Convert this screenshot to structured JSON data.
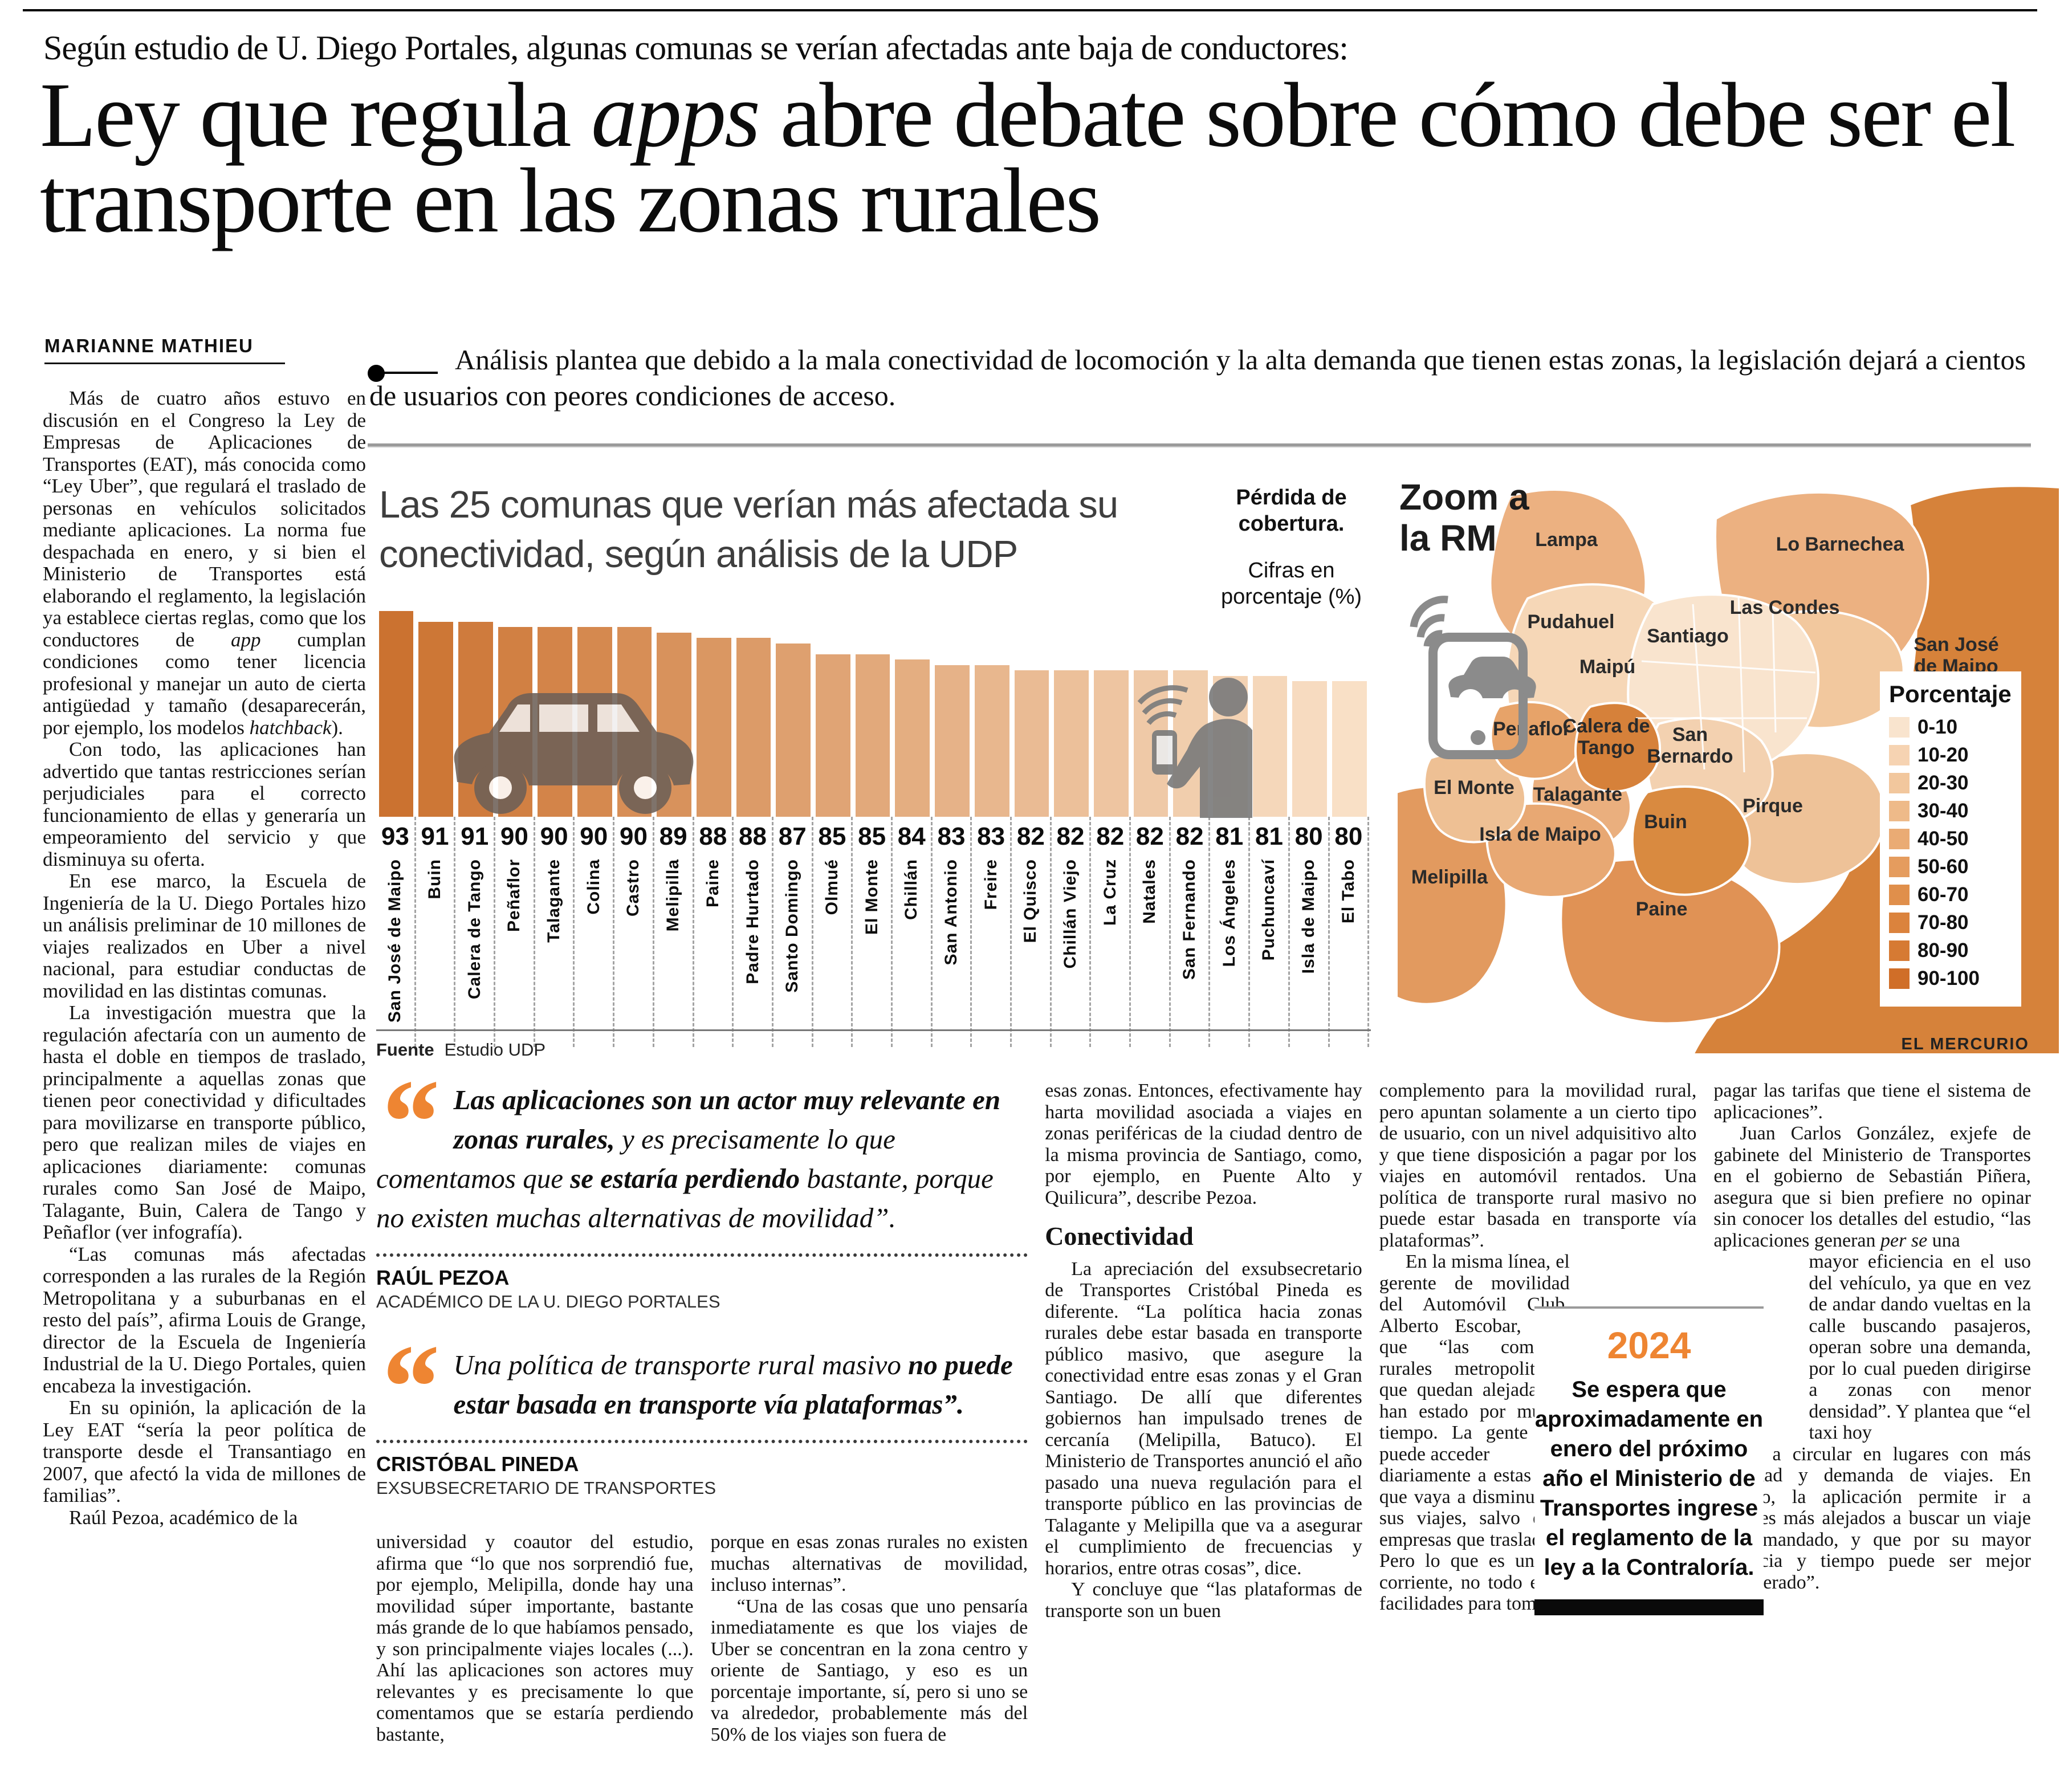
{
  "masthead": {
    "kicker": "Según estudio de U. Diego Portales, algunas comunas se verían afectadas ante baja de conductores:",
    "headline_pre": "Ley que regula ",
    "headline_italic": "apps",
    "headline_post": " abre debate sobre cómo debe ser el transporte en las zonas rurales",
    "byline": "MARIANNE MATHIEU",
    "lede": "Análisis plantea que debido a la mala conectividad de locomoción y la alta demanda que tienen estas zonas, la legislación dejará a cientos de usuarios con peores condiciones de acceso."
  },
  "left_column": {
    "paragraphs": [
      {
        "t": "Más de cuatro años estuvo en discusión en el Congreso la Ley de Empresas de Aplicaciones de Transportes (EAT), más conocida como “Ley Uber”, que regulará el traslado de personas en vehículos solicitados mediante aplicaciones. La norma fue despachada en enero, y si bien el Ministerio de Transportes está elaborando el reglamento, la legislación ya establece ciertas reglas, como que los conductores de *app* cumplan condiciones como tener licencia profesional y manejar un auto de cierta antigüedad y tamaño (desaparecerán, por ejemplo, los modelos *hatchback*)."
      },
      {
        "t": "Con todo, las aplicaciones han advertido que tantas restricciones serían perjudiciales para el correcto funcionamiento de ellas y generaría un empeoramiento del servicio y que disminuya su oferta."
      },
      {
        "t": "En ese marco, la Escuela de Ingeniería de la U. Diego Portales hizo un análisis preliminar de 10 millones de viajes realizados en Uber a nivel nacional, para estudiar conductas de movilidad en las distintas comunas."
      },
      {
        "t": "La investigación muestra que la regulación afectaría con un aumento de hasta el doble en tiempos de traslado, principalmente a aquellas zonas que tienen peor conectividad y dificultades para movilizarse en transporte público, pero que realizan miles de viajes en aplicaciones diariamente: comunas rurales como San José de Maipo, Talagante, Buin, Calera de Tango y Peñaflor (ver infografía)."
      },
      {
        "t": "“Las comunas más afectadas corresponden a las rurales de la Región Metropolitana y a suburbanas en el resto del país”, afirma Louis de Grange, director de la Escuela de Ingeniería Industrial de la U. Diego Portales, quien encabeza la investigación."
      },
      {
        "t": "En su opinión, la aplicación de la Ley EAT “sería la peor política de transporte desde el Transantiago en 2007, que afectó la vida de millones de familias”."
      },
      {
        "t": "Raúl Pezoa, académico de la"
      }
    ]
  },
  "chart_data": {
    "type": "bar",
    "title": "Las 25 comunas que verían más afectada su conectividad, según análisis de la UDP",
    "note_bold": "Pérdida de cobertura.",
    "note": "Cifras en porcentaje (%)",
    "categories": [
      "San José de Maipo",
      "Buin",
      "Calera de Tango",
      "Peñaflor",
      "Talagante",
      "Colina",
      "Castro",
      "Melipilla",
      "Paine",
      "Padre Hurtado",
      "Santo Domingo",
      "Olmué",
      "El Monte",
      "Chillán",
      "San Antonio",
      "Freire",
      "El Quisco",
      "Chillán Viejo",
      "La Cruz",
      "Natales",
      "San Fernando",
      "Los Ángeles",
      "Puchuncaví",
      "Isla de Maipo",
      "El Tabo"
    ],
    "values": [
      93,
      91,
      91,
      90,
      90,
      90,
      90,
      89,
      88,
      88,
      87,
      85,
      85,
      84,
      83,
      83,
      82,
      82,
      82,
      82,
      82,
      81,
      81,
      80,
      80
    ],
    "ylabel": "Pérdida de cobertura (%)",
    "ylim": [
      0,
      100
    ],
    "bar_color_start": "#cb7230",
    "bar_color_end": "#f9e0c6",
    "source_label": "Fuente",
    "source": "Estudio UDP"
  },
  "map": {
    "title": "Zoom a la RM",
    "legend_title": "Porcentaje",
    "legend": [
      {
        "range": "0-10",
        "color": "#f9e4ce"
      },
      {
        "range": "10-20",
        "color": "#f6d3b2"
      },
      {
        "range": "20-30",
        "color": "#f2c79d"
      },
      {
        "range": "30-40",
        "color": "#eeba89"
      },
      {
        "range": "40-50",
        "color": "#eaab74"
      },
      {
        "range": "50-60",
        "color": "#e59c5e"
      },
      {
        "range": "60-70",
        "color": "#e08f4b"
      },
      {
        "range": "70-80",
        "color": "#db833d"
      },
      {
        "range": "80-90",
        "color": "#d67a33"
      },
      {
        "range": "90-100",
        "color": "#d06e28"
      }
    ],
    "labels": [
      "Lampa",
      "Lo Barnechea",
      "Pudahuel",
      "Santiago",
      "Las Condes",
      "Maipú",
      "San José\nde Maipo",
      "Peñaflor",
      "Calera de\nTango",
      "San\nBernardo",
      "El Monte",
      "Talagante",
      "Pirque",
      "Buin",
      "Isla de Maipo",
      "Melipilla",
      "Paine"
    ],
    "region_colors": {
      "sanjose": "#d6823a",
      "lampa": "#ecb181",
      "lobarnechea": "#ecb181",
      "lascondes": "#f2c89e",
      "pudahuel": "#f6d7b7",
      "santiago": "#f9e4ce",
      "sanbernardo": "#f3d1b0",
      "pirque": "#eec298",
      "buin": "#d98a40",
      "calera": "#d6813a",
      "penaflor": "#e7a369",
      "elmonte": "#eec094",
      "talagante": "#eaaf7e",
      "isla": "#e8a873",
      "melipilla": "#e29a5f",
      "paine": "#e09255"
    },
    "credit": "EL MERCURIO"
  },
  "quotes": [
    {
      "segments": [
        {
          "t": "Las aplicaciones son un actor muy relevante en zonas rurales,",
          "b": true
        },
        {
          "t": " y es precisamente lo que comentamos que ",
          "b": false
        },
        {
          "t": "se estaría perdiendo",
          "b": true
        },
        {
          "t": " bastante, porque no existen muchas alternativas de movilidad”.",
          "b": false
        }
      ],
      "author": "RAÚL PEZOA",
      "role": "ACADÉMICO DE LA U. DIEGO PORTALES"
    },
    {
      "segments": [
        {
          "t": "Una política de transporte rural masivo ",
          "b": false
        },
        {
          "t": "no puede estar basada en transporte vía plataformas”.",
          "b": true
        }
      ],
      "author": "CRISTÓBAL PINEDA",
      "role": "EXSUBSECRETARIO DE TRANSPORTES"
    }
  ],
  "columns": {
    "a": [
      {
        "t": "universidad y coautor del estudio, afirma que “lo que nos sorprendió fue, por ejemplo, Melipilla, donde hay una movilidad súper importante, bastante más grande de lo que habíamos pensado, y son principalmente viajes locales (...). Ahí las aplicaciones son actores muy relevantes y es precisamente lo que comentamos que se estaría perdiendo bastante,",
        "ni": true
      }
    ],
    "b": [
      {
        "t": "porque en esas zonas rurales no existen muchas alternativas de movilidad, incluso internas”.",
        "ni": true
      },
      {
        "t": "“Una de las cosas que uno pensaría inmediatamente es que los viajes de Uber se concentran en la zona centro y oriente de Santiago, y eso es un porcentaje importante, sí, pero si uno se va alrededor, probablemente más del 50% de los viajes son fuera de"
      }
    ],
    "c": [
      {
        "t": "esas zonas. Entonces, efectivamente hay harta movilidad asociada a viajes en zonas periféricas de la ciudad dentro de la misma provincia de Santiago, como, por ejemplo, en Puente Alto y Quilicura”, describe Pezoa.",
        "ni": true
      },
      {
        "h": "Conectividad"
      },
      {
        "t": "La apreciación del exsubsecretario de Transportes Cristóbal Pineda es diferente. “La política hacia zonas rurales debe estar basada en transporte público masivo, que asegure la conectividad entre esas zonas y el Gran Santiago. De allí que diferentes gobiernos han impulsado trenes de cercanía (Melipilla, Batuco). El Ministerio de Transportes anunció el año pasado una nueva regulación para el transporte público en las provincias de Talagante y Melipilla que va a asegurar el cumplimiento de frecuencias y horarios, entre otras cosas”, dice."
      },
      {
        "t": "Y concluye que “las plataformas de transporte son un buen"
      }
    ],
    "d": [
      {
        "t": "complemento para la movilidad rural, pero apuntan solamente a un cierto tipo de usuario, con un nivel adquisitivo alto y que tiene disposición a pagar por los viajes en automóvil rentados. Una política de transporte rural masivo no puede estar basada en transporte vía plataformas”.",
        "ni": true
      },
      {
        "t": "En la misma línea, el gerente de movilidad del Automóvil Club, Alberto Escobar, dice que “las comunas rurales metropolitanas que quedan alejadas lo han estado por mucho tiempo. La gente que puede acceder",
        "nr": true
      },
      {
        "t": "diariamente a estas plataformas no creo que vaya a disminuir significativamente sus viajes, salvo que sean viajes de empresas que trasladan a sus empleados. Pero lo que es una persona común y corriente, no todo el mundo tendría las facilidades para tomar o",
        "ni": true
      }
    ],
    "e": [
      {
        "t": "pagar las tarifas que tiene el sistema de aplicaciones”.",
        "ni": true
      },
      {
        "t": "Juan Carlos González, exjefe de gabinete del Ministerio de Transportes en el gobierno de Sebastián Piñera, asegura que si bien prefiere no opinar sin conocer los detalles del estudio, “las aplicaciones generan *per se* una"
      },
      {
        "t": "mayor eficiencia en el uso del vehículo, ya que en vez de andar dando vueltas en la calle buscando pasajeros, operan sobre una demanda, por lo cual pueden dirigirse a zonas con menor densidad”. Y plantea que “el taxi hoy",
        "nl": true,
        "ni": true
      },
      {
        "t": "tiende a circular en lugares con más densidad y demanda de viajes. En cambio, la aplicación permite ir a sectores más alejados a buscar un viaje ya demandado, y que por su mayor distancia y tiempo puede ser mejor remunerado”.",
        "ni": true
      }
    ]
  },
  "box2024": {
    "year": "2024",
    "text": "Se espera que aproximadamente en enero del próximo año el Ministerio de Transportes ingrese el reglamento de la ley a la Contraloría."
  }
}
